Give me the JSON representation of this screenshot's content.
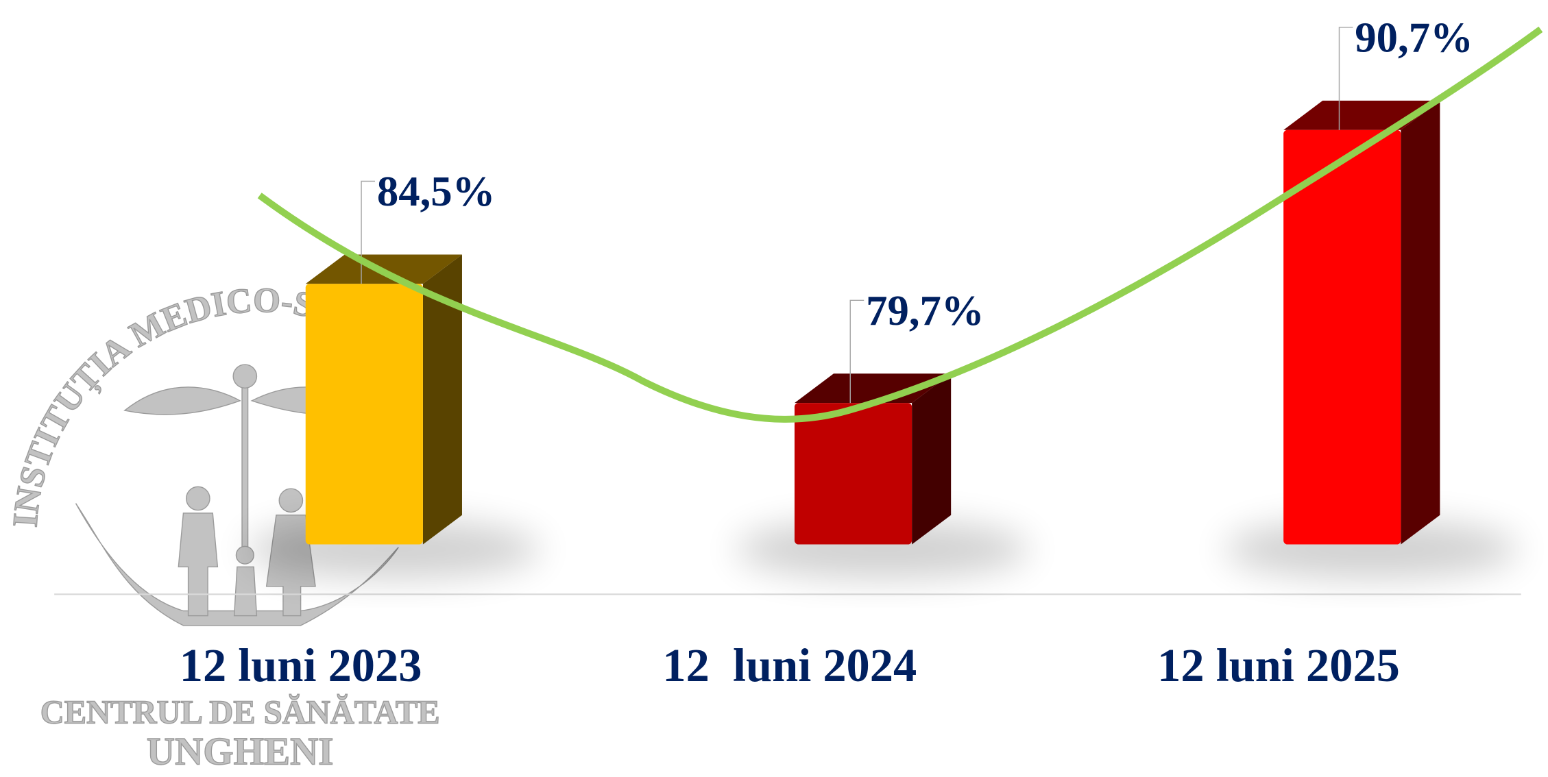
{
  "chart_data": {
    "type": "bar3d",
    "categories": [
      "12 luni 2023",
      "12  luni 2024",
      "12 luni 2025"
    ],
    "values": [
      84.5,
      79.7,
      90.7
    ],
    "value_labels": [
      "84,5%",
      "79,7%",
      "90,7%"
    ],
    "colors": [
      "#ffc000",
      "#c00000",
      "#ff0000"
    ],
    "ylim": [
      74,
      92
    ],
    "trendline_color": "#92d050"
  },
  "logo": {
    "arc_text": "INSTITUȚIA MEDICO-SAN",
    "line1": "CENTRUL DE SĂNĂTATE",
    "line2": "UNGHENI"
  }
}
